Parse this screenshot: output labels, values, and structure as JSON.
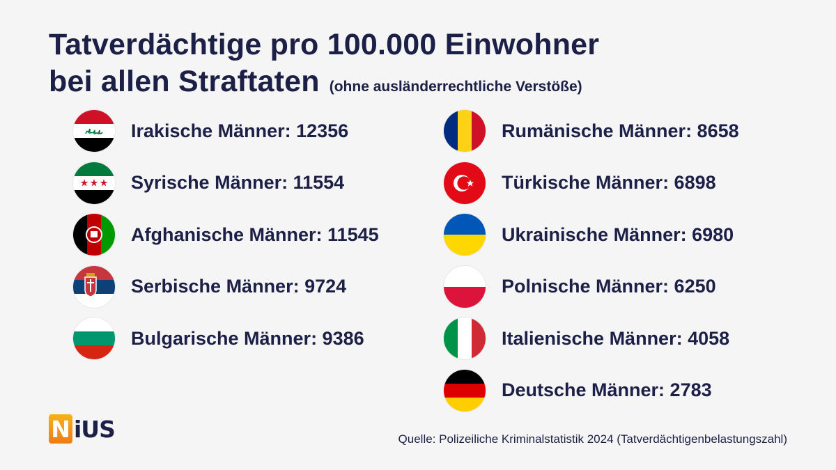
{
  "title": {
    "line1": "Tatverdächtige pro 100.000 Einwohner",
    "line2": "bei allen Straftaten",
    "subtitle": "(ohne ausländerrechtliche Verstöße)"
  },
  "chart_data": {
    "type": "table",
    "title": "Tatverdächtige pro 100.000 Einwohner bei allen Straftaten (ohne ausländerrechtliche Verstöße)",
    "columns": [
      {
        "entries": [
          {
            "label": "Irakische Männer: 12356",
            "group": "Irakische Männer",
            "value": 12356,
            "flag": "iraq"
          },
          {
            "label": "Syrische Männer: 11554",
            "group": "Syrische Männer",
            "value": 11554,
            "flag": "syria"
          },
          {
            "label": "Afghanische Männer: 11545",
            "group": "Afghanische Männer",
            "value": 11545,
            "flag": "afghanistan"
          },
          {
            "label": "Serbische Männer: 9724",
            "group": "Serbische Männer",
            "value": 9724,
            "flag": "serbia"
          },
          {
            "label": "Bulgarische Männer: 9386",
            "group": "Bulgarische Männer",
            "value": 9386,
            "flag": "bulgaria"
          }
        ]
      },
      {
        "entries": [
          {
            "label": "Rumänische Männer: 8658",
            "group": "Rumänische Männer",
            "value": 8658,
            "flag": "romania"
          },
          {
            "label": "Türkische Männer: 6898",
            "group": "Türkische Männer",
            "value": 6898,
            "flag": "turkey"
          },
          {
            "label": "Ukrainische Männer: 6980",
            "group": "Ukrainische Männer",
            "value": 6980,
            "flag": "ukraine"
          },
          {
            "label": "Polnische Männer: 6250",
            "group": "Polnische Männer",
            "value": 6250,
            "flag": "poland"
          },
          {
            "label": "Italienische Männer: 4058",
            "group": "Italienische Männer",
            "value": 4058,
            "flag": "italy"
          },
          {
            "label": "Deutsche Männer: 2783",
            "group": "Deutsche Männer",
            "value": 2783,
            "flag": "germany"
          }
        ]
      }
    ]
  },
  "logo": {
    "initial": "N",
    "rest": "iUS"
  },
  "source": "Quelle: Polizeiliche Kriminalstatistik 2024 (Tatverdächtigenbelastungszahl)",
  "colors": {
    "text": "#1d2046",
    "background": "#f5f5f6",
    "logo_orange": "#f07a18"
  }
}
